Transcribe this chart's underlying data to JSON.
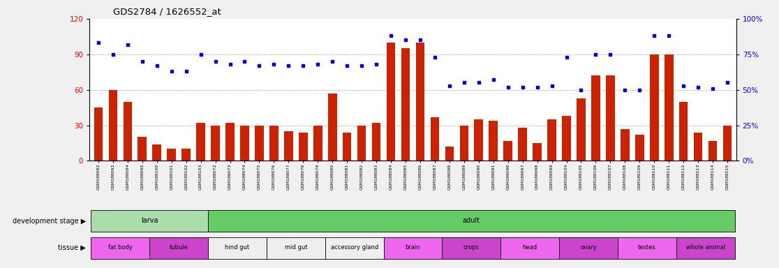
{
  "title": "GDS2784 / 1626552_at",
  "samples": [
    "GSM188092",
    "GSM188093",
    "GSM188094",
    "GSM188095",
    "GSM188100",
    "GSM188101",
    "GSM188102",
    "GSM188103",
    "GSM188072",
    "GSM188073",
    "GSM188074",
    "GSM188075",
    "GSM188076",
    "GSM188077",
    "GSM188078",
    "GSM188079",
    "GSM188080",
    "GSM188081",
    "GSM188082",
    "GSM188083",
    "GSM188084",
    "GSM188085",
    "GSM188086",
    "GSM188087",
    "GSM188088",
    "GSM188089",
    "GSM188090",
    "GSM188091",
    "GSM188096",
    "GSM188097",
    "GSM188098",
    "GSM188099",
    "GSM188104",
    "GSM188105",
    "GSM188106",
    "GSM188107",
    "GSM188108",
    "GSM188109",
    "GSM188110",
    "GSM188111",
    "GSM188112",
    "GSM188113",
    "GSM188114",
    "GSM188115"
  ],
  "counts": [
    45,
    60,
    50,
    20,
    14,
    10,
    10,
    32,
    30,
    32,
    30,
    30,
    30,
    25,
    24,
    30,
    57,
    24,
    30,
    32,
    100,
    95,
    100,
    37,
    12,
    30,
    35,
    34,
    17,
    28,
    15,
    35,
    38,
    53,
    72,
    72,
    27,
    22,
    90,
    90,
    50,
    24,
    17,
    30
  ],
  "percentiles": [
    83,
    75,
    82,
    70,
    67,
    63,
    63,
    75,
    70,
    68,
    70,
    67,
    68,
    67,
    67,
    68,
    70,
    67,
    67,
    68,
    88,
    85,
    85,
    73,
    53,
    55,
    55,
    57,
    52,
    52,
    52,
    53,
    73,
    50,
    75,
    75,
    50,
    50,
    88,
    88,
    53,
    52,
    51,
    55
  ],
  "ylim_left": [
    0,
    120
  ],
  "yticks_left": [
    0,
    30,
    60,
    90,
    120
  ],
  "yticks_right": [
    0,
    25,
    50,
    75,
    100
  ],
  "bar_color": "#cc2200",
  "dot_color": "#0000dd",
  "background_color": "#f0f0f0",
  "plot_bg": "#ffffff",
  "dev_stage_groups": [
    {
      "label": "larva",
      "start": 0,
      "end": 7,
      "color": "#aaddaa"
    },
    {
      "label": "adult",
      "start": 8,
      "end": 43,
      "color": "#66cc66"
    }
  ],
  "tissue_groups": [
    {
      "label": "fat body",
      "start": 0,
      "end": 3,
      "color": "#ee66ee"
    },
    {
      "label": "tubule",
      "start": 4,
      "end": 7,
      "color": "#cc44cc"
    },
    {
      "label": "hind gut",
      "start": 8,
      "end": 11,
      "color": "#eeeeee"
    },
    {
      "label": "mid gut",
      "start": 12,
      "end": 15,
      "color": "#eeeeee"
    },
    {
      "label": "accessory gland",
      "start": 16,
      "end": 19,
      "color": "#eeeeee"
    },
    {
      "label": "brain",
      "start": 20,
      "end": 23,
      "color": "#ee66ee"
    },
    {
      "label": "crops",
      "start": 24,
      "end": 27,
      "color": "#cc44cc"
    },
    {
      "label": "head",
      "start": 28,
      "end": 31,
      "color": "#ee66ee"
    },
    {
      "label": "ovary",
      "start": 32,
      "end": 35,
      "color": "#cc44cc"
    },
    {
      "label": "testes",
      "start": 36,
      "end": 39,
      "color": "#ee66ee"
    },
    {
      "label": "whole animal",
      "start": 40,
      "end": 43,
      "color": "#cc44cc"
    }
  ],
  "legend_count_color": "#cc2200",
  "legend_pct_color": "#0000dd"
}
